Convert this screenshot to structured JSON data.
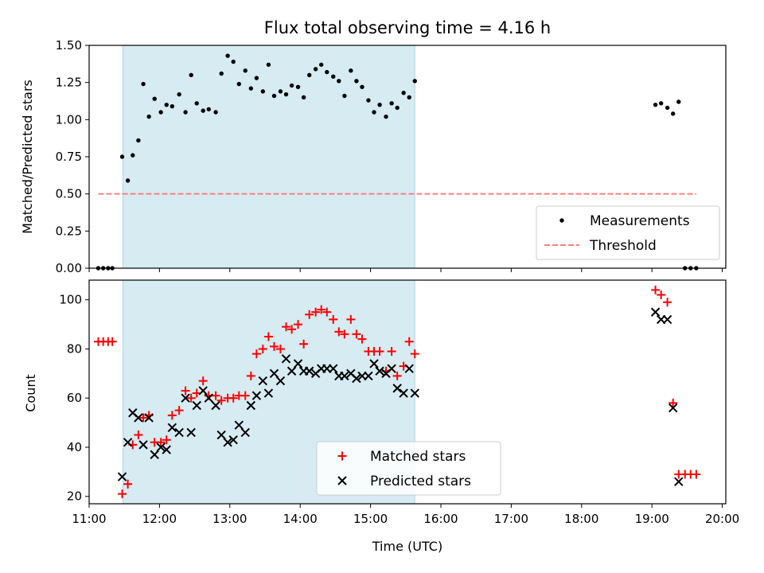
{
  "chart_data": {
    "title": "Flux total observing time = 4.16 h",
    "xlabel": "Time (UTC)",
    "xlim": [
      11.0,
      20.05
    ],
    "xticks": [
      11,
      12,
      13,
      14,
      15,
      16,
      17,
      18,
      19,
      20
    ],
    "xtick_labels": [
      "11:00",
      "12:00",
      "13:00",
      "14:00",
      "15:00",
      "16:00",
      "17:00",
      "18:00",
      "19:00",
      "20:00"
    ],
    "observing_window": {
      "start": 11.48,
      "end": 15.63,
      "color": "#add8e6"
    },
    "panels": [
      {
        "type": "scatter",
        "ylabel": "Matched/Predicted stars",
        "ylim": [
          0,
          1.5
        ],
        "yticks": [
          0.0,
          0.25,
          0.5,
          0.75,
          1.0,
          1.25,
          1.5
        ],
        "ytick_labels": [
          "0.00",
          "0.25",
          "0.50",
          "0.75",
          "1.00",
          "1.25",
          "1.50"
        ],
        "legend_position": "bottom-right",
        "series": [
          {
            "name": "Measurements",
            "marker": "dot",
            "color": "#000000",
            "x": [
              11.13,
              11.2,
              11.27,
              11.33,
              11.47,
              11.55,
              11.62,
              11.7,
              11.77,
              11.85,
              11.93,
              12.02,
              12.1,
              12.18,
              12.28,
              12.37,
              12.45,
              12.53,
              12.62,
              12.7,
              12.8,
              12.88,
              12.97,
              13.05,
              13.13,
              13.22,
              13.3,
              13.38,
              13.47,
              13.55,
              13.63,
              13.72,
              13.8,
              13.88,
              13.97,
              14.05,
              14.13,
              14.22,
              14.3,
              14.38,
              14.47,
              14.55,
              14.63,
              14.72,
              14.8,
              14.88,
              14.97,
              15.05,
              15.13,
              15.22,
              15.3,
              15.38,
              15.47,
              15.55,
              15.63,
              19.05,
              19.13,
              19.22,
              19.3,
              19.38,
              19.47,
              19.55,
              19.63
            ],
            "y": [
              0.0,
              0.0,
              0.0,
              0.0,
              0.75,
              0.59,
              0.76,
              0.86,
              1.24,
              1.02,
              1.14,
              1.05,
              1.1,
              1.09,
              1.17,
              1.05,
              1.3,
              1.11,
              1.06,
              1.07,
              1.05,
              1.31,
              1.43,
              1.39,
              1.24,
              1.33,
              1.21,
              1.28,
              1.19,
              1.37,
              1.16,
              1.19,
              1.17,
              1.23,
              1.22,
              1.15,
              1.3,
              1.34,
              1.37,
              1.32,
              1.29,
              1.26,
              1.16,
              1.33,
              1.26,
              1.22,
              1.13,
              1.05,
              1.1,
              1.02,
              1.11,
              1.08,
              1.18,
              1.15,
              1.26,
              1.1,
              1.11,
              1.08,
              1.04,
              1.12,
              0.0,
              0.0,
              0.0
            ]
          },
          {
            "name": "Threshold",
            "marker": "dashed-line",
            "color": "#ff7f7f",
            "x": [
              11.13,
              19.63
            ],
            "y": [
              0.5,
              0.5
            ]
          }
        ]
      },
      {
        "type": "scatter",
        "ylabel": "Count",
        "ylim": [
          17,
          108
        ],
        "yticks": [
          20,
          40,
          60,
          80,
          100
        ],
        "ytick_labels": [
          "20",
          "40",
          "60",
          "80",
          "100"
        ],
        "legend_position": "bottom-center",
        "series": [
          {
            "name": "Matched stars",
            "marker": "plus",
            "color": "#ff0000",
            "x": [
              11.13,
              11.2,
              11.27,
              11.33,
              11.47,
              11.55,
              11.62,
              11.7,
              11.77,
              11.85,
              11.93,
              12.02,
              12.1,
              12.18,
              12.28,
              12.37,
              12.45,
              12.53,
              12.62,
              12.7,
              12.8,
              12.88,
              12.97,
              13.05,
              13.13,
              13.22,
              13.3,
              13.38,
              13.47,
              13.55,
              13.63,
              13.72,
              13.8,
              13.88,
              13.97,
              14.05,
              14.13,
              14.22,
              14.3,
              14.38,
              14.47,
              14.55,
              14.63,
              14.72,
              14.8,
              14.88,
              14.97,
              15.05,
              15.13,
              15.22,
              15.3,
              15.38,
              15.47,
              15.55,
              15.63,
              19.05,
              19.13,
              19.22,
              19.3,
              19.38,
              19.47,
              19.55,
              19.63
            ],
            "y": [
              83,
              83,
              83,
              83,
              21,
              25,
              41,
              45,
              52,
              53,
              42,
              42,
              43,
              53,
              55,
              63,
              60,
              62,
              67,
              61,
              61,
              59,
              60,
              60,
              61,
              61,
              69,
              78,
              80,
              85,
              81,
              80,
              89,
              88,
              90,
              82,
              94,
              95,
              96,
              95,
              92,
              87,
              86,
              92,
              86,
              84,
              79,
              79,
              79,
              71,
              79,
              69,
              73,
              83,
              78,
              104,
              102,
              99,
              58,
              29,
              29,
              29,
              29
            ]
          },
          {
            "name": "Predicted stars",
            "marker": "x",
            "color": "#000000",
            "x": [
              11.47,
              11.55,
              11.62,
              11.7,
              11.77,
              11.85,
              11.93,
              12.02,
              12.1,
              12.18,
              12.28,
              12.37,
              12.45,
              12.53,
              12.62,
              12.7,
              12.8,
              12.88,
              12.97,
              13.05,
              13.13,
              13.22,
              13.3,
              13.38,
              13.47,
              13.55,
              13.63,
              13.72,
              13.8,
              13.88,
              13.97,
              14.05,
              14.13,
              14.22,
              14.3,
              14.38,
              14.47,
              14.55,
              14.63,
              14.72,
              14.8,
              14.88,
              14.97,
              15.05,
              15.13,
              15.22,
              15.3,
              15.38,
              15.47,
              15.55,
              15.63,
              19.05,
              19.13,
              19.22,
              19.3,
              19.38
            ],
            "y": [
              28,
              42,
              54,
              52,
              41,
              52,
              37,
              40,
              39,
              48,
              46,
              60,
              46,
              57,
              63,
              60,
              57,
              45,
              42,
              43,
              49,
              46,
              57,
              61,
              67,
              62,
              70,
              67,
              76,
              71,
              74,
              71,
              71,
              70,
              72,
              72,
              72,
              69,
              69,
              70,
              68,
              69,
              69,
              74,
              71,
              70,
              72,
              64,
              62,
              72,
              62,
              95,
              92,
              92,
              56,
              26
            ]
          }
        ]
      }
    ]
  }
}
